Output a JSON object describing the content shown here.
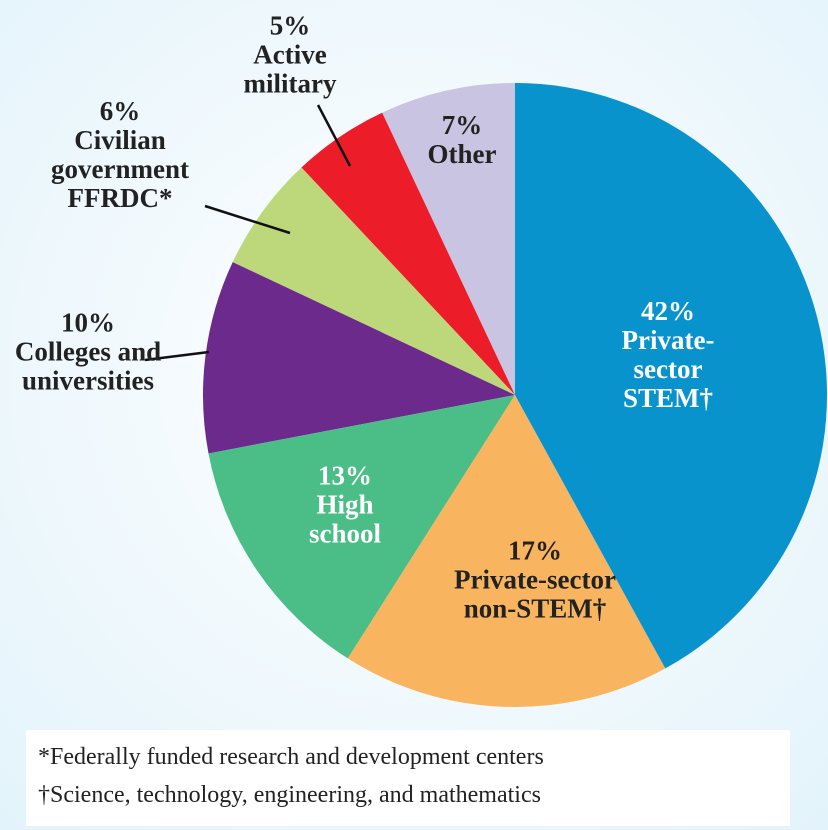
{
  "chart_data": {
    "type": "pie",
    "categories": [
      "Private-sector STEM†",
      "Private-sector non-STEM†",
      "High school",
      "Colleges and universities",
      "Civilian government FFRDC*",
      "Active military",
      "Other"
    ],
    "values": [
      42,
      17,
      13,
      10,
      6,
      5,
      7
    ],
    "value_labels": [
      "42%",
      "17%",
      "13%",
      "10%",
      "6%",
      "5%",
      "7%"
    ],
    "colors": [
      "#0893cd",
      "#f9b45f",
      "#4bbd87",
      "#6b2a8c",
      "#bdd87a",
      "#ec1c28",
      "#c8c4e1"
    ],
    "notes": [
      "*Federally funded research and development centers",
      "†Science, technology, engineering, and mathematics"
    ]
  }
}
